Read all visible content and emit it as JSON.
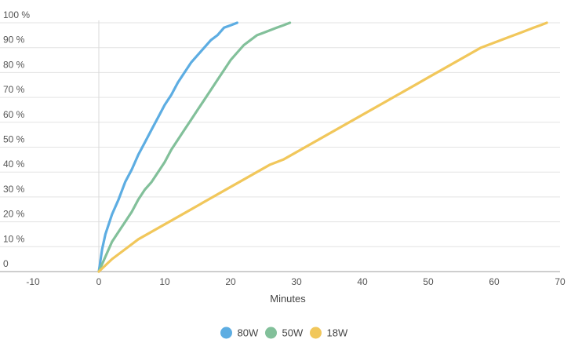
{
  "chart_data": {
    "type": "line",
    "title": "",
    "xlabel": "Minutes",
    "ylabel": "",
    "xlim": [
      -10,
      70
    ],
    "ylim": [
      0,
      100
    ],
    "x_ticks": [
      -10,
      0,
      10,
      20,
      30,
      40,
      50,
      60,
      70
    ],
    "x_tick_labels": [
      "-10",
      "0",
      "10",
      "20",
      "30",
      "40",
      "50",
      "60",
      "70"
    ],
    "y_ticks": [
      0,
      10,
      20,
      30,
      40,
      50,
      60,
      70,
      80,
      90,
      100
    ],
    "y_tick_labels": [
      "0",
      "10 %",
      "20 %",
      "30 %",
      "40 %",
      "50 %",
      "60 %",
      "70 %",
      "80 %",
      "90 %",
      "100 %"
    ],
    "grid": "horizontal",
    "legend_position": "bottom",
    "series": [
      {
        "name": "80W",
        "color": "#5dade2",
        "x": [
          0,
          0.5,
          1,
          2,
          3,
          4,
          5,
          6,
          7,
          8,
          9,
          10,
          11,
          12,
          13,
          14,
          15,
          16,
          17,
          18,
          19,
          20,
          21
        ],
        "y": [
          0,
          9,
          15,
          23,
          29,
          36,
          41,
          47,
          52,
          57,
          62,
          67,
          71,
          76,
          80,
          84,
          87,
          90,
          93,
          95,
          98,
          99,
          100
        ]
      },
      {
        "name": "50W",
        "color": "#82c09a",
        "x": [
          0,
          1,
          2,
          3,
          4,
          5,
          6,
          7,
          8,
          9,
          10,
          11,
          12,
          13,
          14,
          15,
          16,
          17,
          18,
          19,
          20,
          21,
          22,
          23,
          24,
          25,
          26,
          27,
          28,
          29
        ],
        "y": [
          0,
          6,
          12,
          16,
          20,
          24,
          29,
          33,
          36,
          40,
          44,
          49,
          53,
          57,
          61,
          65,
          69,
          73,
          77,
          81,
          85,
          88,
          91,
          93,
          95,
          96,
          97,
          98,
          99,
          100
        ]
      },
      {
        "name": "18W",
        "color": "#f1c75b",
        "x": [
          0,
          2,
          4,
          6,
          8,
          10,
          12,
          14,
          16,
          18,
          20,
          22,
          24,
          26,
          28,
          30,
          32,
          34,
          36,
          38,
          40,
          42,
          44,
          46,
          48,
          50,
          52,
          54,
          56,
          58,
          60,
          62,
          64,
          66,
          67,
          68
        ],
        "y": [
          0,
          5,
          9,
          13,
          16,
          19,
          22,
          25,
          28,
          31,
          34,
          37,
          40,
          43,
          45,
          48,
          51,
          54,
          57,
          60,
          63,
          66,
          69,
          72,
          75,
          78,
          81,
          84,
          87,
          90,
          92,
          94,
          96,
          98,
          99,
          100
        ]
      }
    ]
  }
}
